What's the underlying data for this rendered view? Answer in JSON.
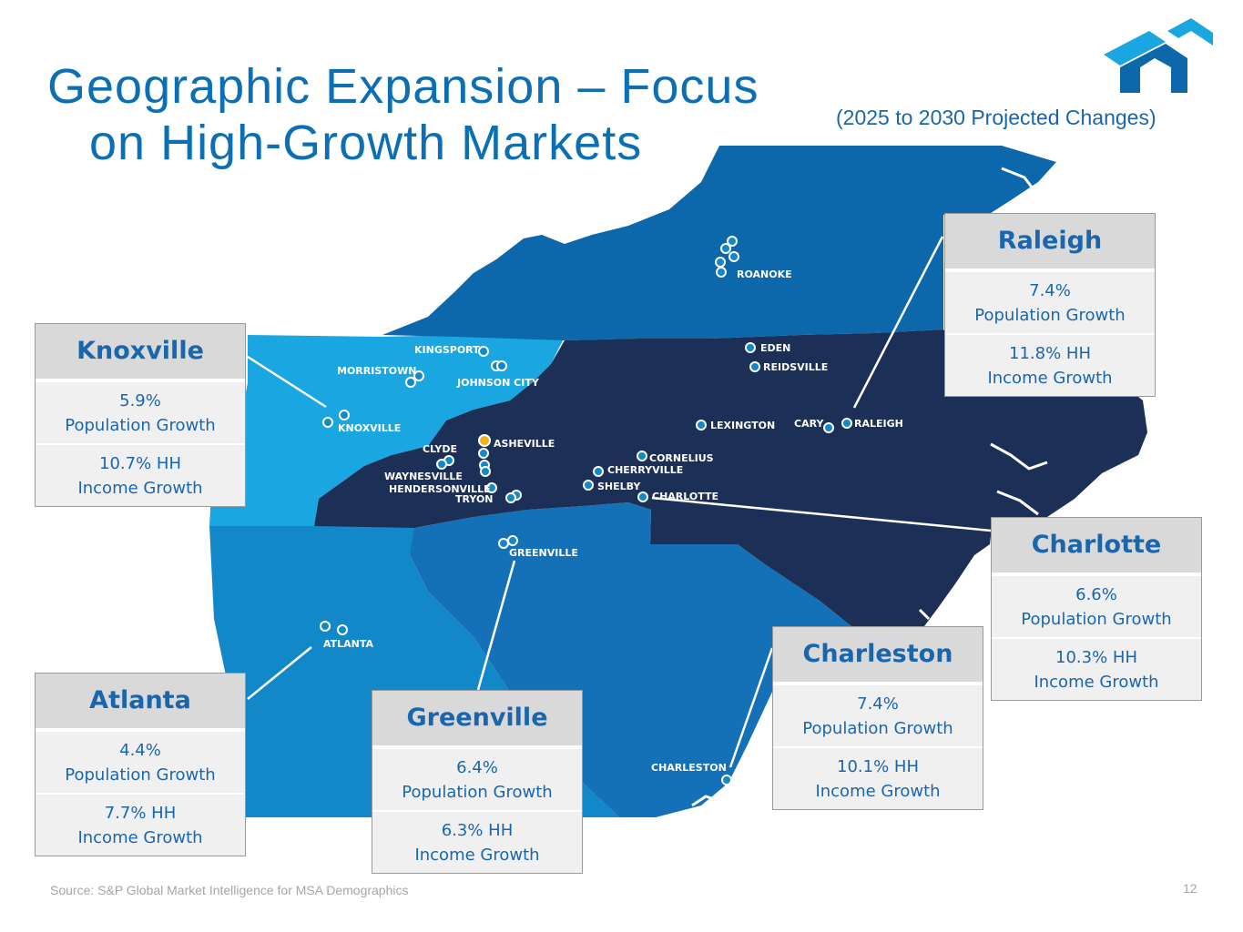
{
  "title": {
    "line1": "Geographic Expansion – Focus",
    "line2": "on High-Growth Markets"
  },
  "subtitle": "(2025 to 2030 Projected Changes)",
  "logo_icon": "company-logo",
  "colors": {
    "title": "#0c6eb3",
    "region_north": "#0d67ab",
    "region_knoxville": "#1aa6e0",
    "region_georgia": "#1288c9",
    "region_core": "#1c2f57",
    "region_south": "#1471b7",
    "card_text": "#1a66ad"
  },
  "map_labels": {
    "roanoke": "ROANOKE",
    "eden": "EDEN",
    "reidsville": "REIDSVILLE",
    "kingsport": "KINGSPORT",
    "morristown": "MORRISTOWN",
    "johnson_city": "JOHNSON CITY",
    "knoxville": "KNOXVILLE",
    "lexington": "LEXINGTON",
    "cary": "CARY",
    "raleigh": "RALEIGH",
    "asheville": "ASHEVILLE",
    "clyde": "CLYDE",
    "waynesville": "WAYNESVILLE",
    "hendersonville": "HENDERSONVILLE",
    "tryon": "TRYON",
    "cornelius": "CORNELIUS",
    "cherryville": "CHERRYVILLE",
    "shelby": "SHELBY",
    "charlotte": "CHARLOTTE",
    "greenville": "GREENVILLE",
    "atlanta": "ATLANTA",
    "charleston": "CHARLESTON"
  },
  "markets": {
    "raleigh": {
      "name": "Raleigh",
      "pop": "7.4%",
      "pop_label": "Population Growth",
      "inc": "11.8% HH",
      "inc_label": "Income Growth"
    },
    "knoxville": {
      "name": "Knoxville",
      "pop": "5.9%",
      "pop_label": "Population Growth",
      "inc": "10.7% HH",
      "inc_label": "Income Growth"
    },
    "charlotte": {
      "name": "Charlotte",
      "pop": "6.6%",
      "pop_label": "Population Growth",
      "inc": "10.3% HH",
      "inc_label": "Income Growth"
    },
    "charleston": {
      "name": "Charleston",
      "pop": "7.4%",
      "pop_label": "Population Growth",
      "inc": "10.1% HH",
      "inc_label": "Income Growth"
    },
    "atlanta": {
      "name": "Atlanta",
      "pop": "4.4%",
      "pop_label": "Population Growth",
      "inc": "7.7% HH",
      "inc_label": "Income Growth"
    },
    "greenville": {
      "name": "Greenville",
      "pop": "6.4%",
      "pop_label": "Population Growth",
      "inc": "6.3% HH",
      "inc_label": "Income Growth"
    }
  },
  "source": "Source: S&P Global Market Intelligence for MSA Demographics",
  "page_number": "12"
}
